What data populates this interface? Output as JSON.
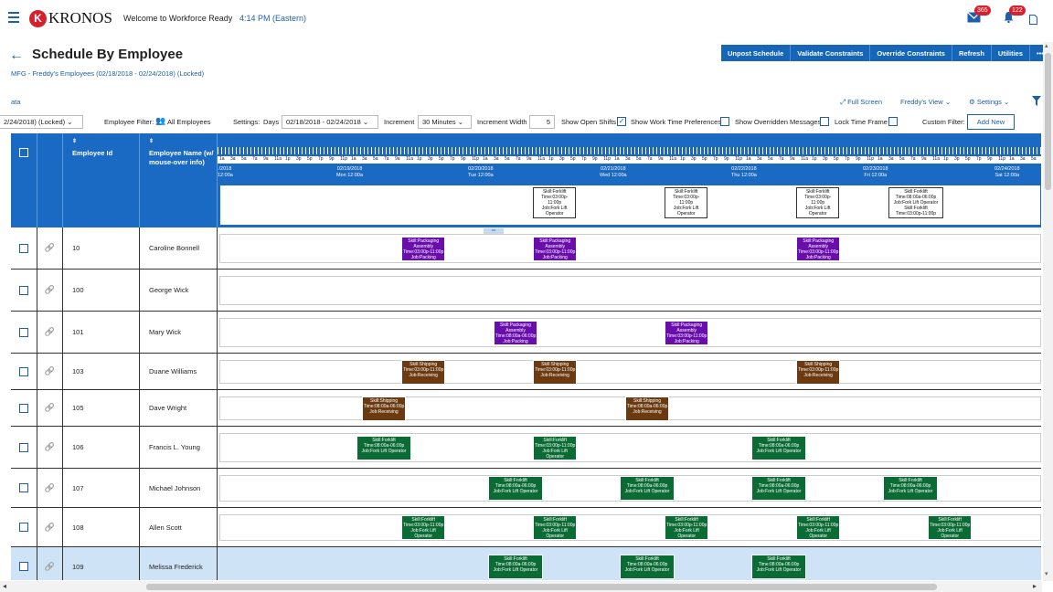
{
  "header": {
    "logo_text": "KRONOS",
    "welcome": "Welcome to Workforce Ready",
    "time": "4:14 PM (Eastern)",
    "mail_count": "365",
    "notif_count": "122",
    "icons": {
      "menu": "hamburger-icon",
      "mail": "mail-icon",
      "bell": "bell-icon",
      "doc": "document-icon"
    }
  },
  "page": {
    "title": "Schedule By Employee",
    "subtitle": "MFG - Freddy's Employees (02/18/2018 - 02/24/2018) (Locked)"
  },
  "actions": [
    "Unpost Schedule",
    "Validate Constraints",
    "Override Constraints",
    "Refresh",
    "Utilities",
    "•••"
  ],
  "toolbar": {
    "left_link": "ata",
    "full_screen": "Full Screen",
    "view": "Freddy's View",
    "settings": "Settings"
  },
  "filters": {
    "schedule": "2/24/2018) (Locked)",
    "employee_filter_label": "Employee Filter:",
    "employee_filter": "All Employees",
    "settings_label": "Settings:",
    "days_label": "Days",
    "date_range": "02/18/2018 - 02/24/2018",
    "increment_label": "Increment",
    "increment": "30 Minutes",
    "increment_width_label": "Increment Width",
    "increment_width": "5",
    "show_open_shifts": "Show Open Shifts",
    "show_work_time": "Show Work Time Preferences",
    "show_overridden": "Show Overridden Messages",
    "lock_time_frame": "Lock Time Frame",
    "custom_filter": "Custom Filter:",
    "add_new": "Add New"
  },
  "grid": {
    "columns": {
      "employee_id": "Employee Id",
      "employee_name": "Employee Name (w/ mouse-over info)"
    },
    "hour_labels": [
      "1a",
      "3a",
      "5a",
      "7a",
      "9a",
      "11a",
      "1p",
      "3p",
      "5p",
      "7p",
      "9p",
      "11p"
    ],
    "days": [
      {
        "date": "/2018",
        "day": "12:00a"
      },
      {
        "date": "02/19/2018",
        "day": "Mon 12:00a"
      },
      {
        "date": "02/20/2018",
        "day": "Tue 12:00a"
      },
      {
        "date": "02/21/2018",
        "day": "Wed 12:00a"
      },
      {
        "date": "02/22/2018",
        "day": "Thu 12:00a"
      },
      {
        "date": "02/23/2018",
        "day": "Fri 12:00a"
      },
      {
        "date": "02/24/2018",
        "day": "Sat 12:00a"
      }
    ],
    "open_shifts": [
      {
        "day": 2.55,
        "lines": [
          "Skill:Forklift",
          "Time:03:00p-",
          "11:00p",
          "Job:Fork Lift",
          "Operator"
        ]
      },
      {
        "day": 3.55,
        "lines": [
          "Skill:Forklift",
          "Time:03:00p-",
          "11:00p",
          "Job:Fork Lift",
          "Operator"
        ]
      },
      {
        "day": 4.55,
        "lines": [
          "Skill:Forklift",
          "Time:03:00p-",
          "11:00p",
          "Job:Fork Lift",
          "Operator"
        ]
      },
      {
        "day": 5.25,
        "lines": [
          "Skill:Forklift",
          "Time:08:00a-06:00p",
          "Job:Fork Lift Operator",
          "Skill:Forklift",
          "Time:03:00p-11:00p"
        ]
      }
    ],
    "employees": [
      {
        "id": "10",
        "name": "Caroline Bonnell",
        "shifts": [
          {
            "day": 1.55,
            "color": "#6a0dad",
            "lines": [
              "Skill:Packaging",
              "Assembly",
              "Time:03:00p-11:00p",
              "Job:Packing"
            ]
          },
          {
            "day": 2.55,
            "color": "#6a0dad",
            "lines": [
              "Skill:Packaging",
              "Assembly",
              "Time:03:00p-11:00p",
              "Job:Packing"
            ]
          },
          {
            "day": 4.55,
            "color": "#6a0dad",
            "lines": [
              "Skill:Packaging",
              "Assembly",
              "Time:03:00p-11:00p",
              "Job:Packing"
            ]
          }
        ]
      },
      {
        "id": "100",
        "name": "George Wick",
        "shifts": []
      },
      {
        "id": "101",
        "name": "Mary Wick",
        "shifts": [
          {
            "day": 2.25,
            "color": "#6a0dad",
            "lines": [
              "Skill:Packaging",
              "Assembly",
              "Time:08:00a-06:00p",
              "Job:Packing"
            ]
          },
          {
            "day": 3.55,
            "color": "#6a0dad",
            "lines": [
              "Skill:Packaging",
              "Assembly",
              "Time:03:00p-11:00p",
              "Job:Packing"
            ]
          }
        ]
      },
      {
        "id": "103",
        "name": "Duane Williams",
        "shifts": [
          {
            "day": 1.55,
            "color": "#6b3a10",
            "lines": [
              "Skill:Shipping",
              "Time:03:00p-11:00p",
              "Job:Receiving"
            ]
          },
          {
            "day": 2.55,
            "color": "#6b3a10",
            "lines": [
              "Skill:Shipping",
              "Time:03:00p-11:00p",
              "Job:Receiving"
            ]
          },
          {
            "day": 4.55,
            "color": "#6b3a10",
            "lines": [
              "Skill:Shipping",
              "Time:03:00p-11:00p",
              "Job:Receiving"
            ]
          }
        ]
      },
      {
        "id": "105",
        "name": "Dave Wright",
        "shifts": [
          {
            "day": 1.25,
            "color": "#6b3a10",
            "lines": [
              "Skill:Shipping",
              "Time:08:00a-06:00p",
              "Job:Receiving"
            ]
          },
          {
            "day": 3.25,
            "color": "#6b3a10",
            "lines": [
              "Skill:Shipping",
              "Time:08:00a-06:00p",
              "Job:Receiving"
            ]
          }
        ]
      },
      {
        "id": "106",
        "name": "Francis L. Young",
        "shifts": [
          {
            "day": 1.25,
            "color": "#0b6b35",
            "lines": [
              "Skill:Forklift",
              "Time:08:00a-06:00p",
              "Job:Fork Lift Operator"
            ]
          },
          {
            "day": 2.55,
            "color": "#0b6b35",
            "lines": [
              "Skill:Forklift",
              "Time:03:00p-11:00p",
              "Job:Fork Lift",
              "Operator"
            ]
          },
          {
            "day": 4.25,
            "color": "#0b6b35",
            "lines": [
              "Skill:Forklift",
              "Time:08:00a-06:00p",
              "Job:Fork Lift Operator"
            ]
          }
        ]
      },
      {
        "id": "107",
        "name": "Michael Johnson",
        "shifts": [
          {
            "day": 2.25,
            "color": "#0b6b35",
            "lines": [
              "Skill:Forklift",
              "Time:08:00a-06:00p",
              "Job:Fork Lift Operator"
            ]
          },
          {
            "day": 3.25,
            "color": "#0b6b35",
            "lines": [
              "Skill:Forklift",
              "Time:08:00a-06:00p",
              "Job:Fork Lift Operator"
            ]
          },
          {
            "day": 4.25,
            "color": "#0b6b35",
            "lines": [
              "Skill:Forklift",
              "Time:08:00a-06:00p",
              "Job:Fork Lift Operator"
            ]
          },
          {
            "day": 5.25,
            "color": "#0b6b35",
            "lines": [
              "Skill:Forklift",
              "Time:08:00a-06:00p",
              "Job:Fork Lift Operator"
            ]
          }
        ]
      },
      {
        "id": "108",
        "name": "Allen Scott",
        "shifts": [
          {
            "day": 1.55,
            "color": "#0b6b35",
            "lines": [
              "Skill:Forklift",
              "Time:03:00p-11:00p",
              "Job:Fork Lift",
              "Operator"
            ]
          },
          {
            "day": 2.55,
            "color": "#0b6b35",
            "lines": [
              "Skill:Forklift",
              "Time:03:00p-11:00p",
              "Job:Fork Lift",
              "Operator"
            ]
          },
          {
            "day": 3.55,
            "color": "#0b6b35",
            "lines": [
              "Skill:Forklift",
              "Time:03:00p-11:00p",
              "Job:Fork Lift",
              "Operator"
            ]
          },
          {
            "day": 4.55,
            "color": "#0b6b35",
            "lines": [
              "Skill:Forklift",
              "Time:03:00p-11:00p",
              "Job:Fork Lift",
              "Operator"
            ]
          },
          {
            "day": 5.55,
            "color": "#0b6b35",
            "lines": [
              "Skill:Forklift",
              "Time:03:00p-11:00p",
              "Job:Fork Lift",
              "Operator"
            ]
          }
        ]
      },
      {
        "id": "109",
        "name": "Melissa Frederick",
        "highlight": true,
        "shifts": [
          {
            "day": 2.25,
            "color": "#0b6b35",
            "lines": [
              "Skill:Forklift",
              "Time:08:00a-06:00p",
              "Job:Fork Lift Operator"
            ]
          },
          {
            "day": 3.25,
            "color": "#0b6b35",
            "lines": [
              "Skill:Forklift",
              "Time:08:00a-06:00p",
              "Job:Fork Lift Operator"
            ]
          },
          {
            "day": 4.25,
            "color": "#0b6b35",
            "lines": [
              "Skill:Forklift",
              "Time:08:00a-06:00p",
              "Job:Fork Lift Operator"
            ]
          }
        ]
      }
    ]
  }
}
